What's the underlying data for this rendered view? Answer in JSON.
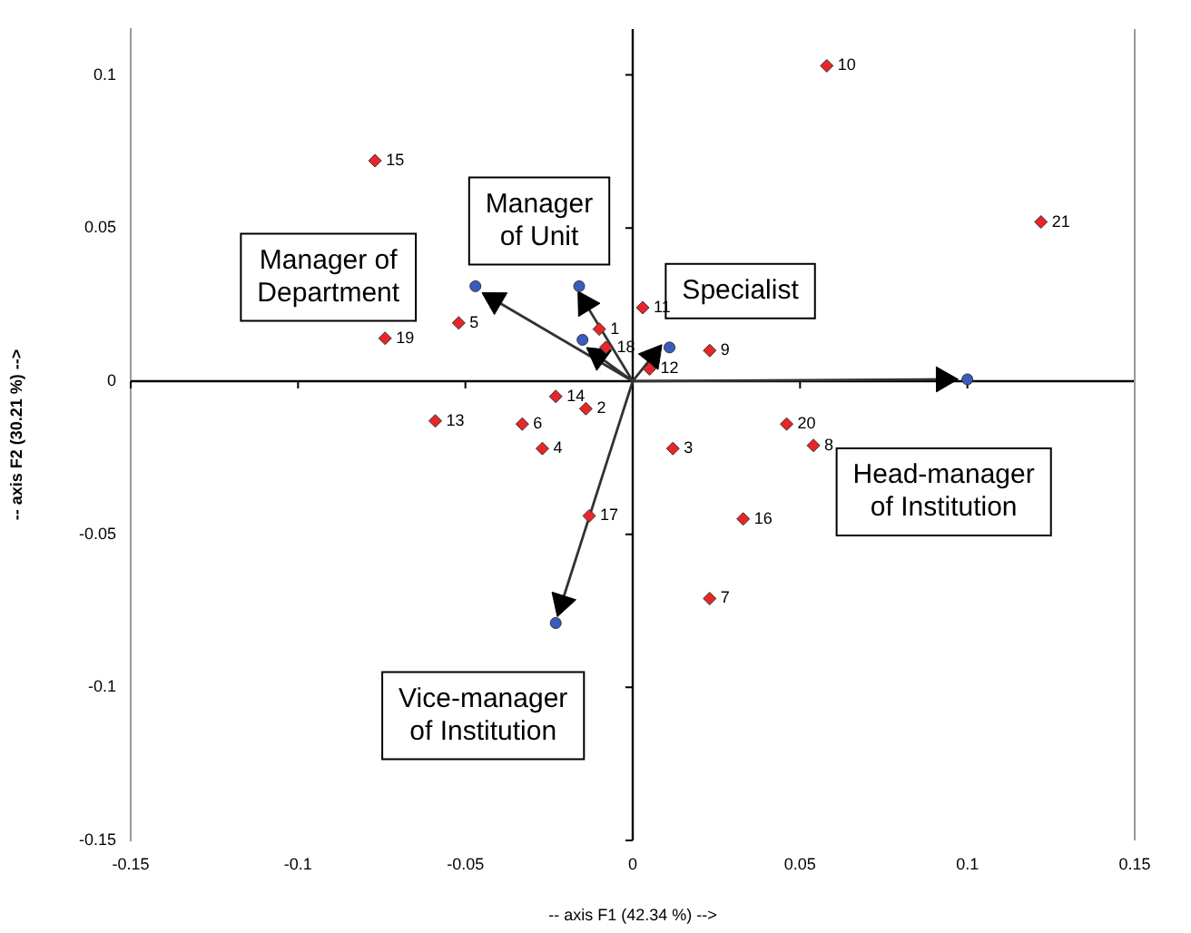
{
  "chart_data": {
    "type": "scatter",
    "xlabel": "-- axis F1 (42.34 %) -->",
    "ylabel": "-- axis F2 (30.21 %) -->",
    "xlim": [
      -0.15,
      0.15
    ],
    "xticks": [
      -0.15,
      -0.1,
      -0.05,
      0,
      0.05,
      0.1,
      0.15
    ],
    "ylim": [
      -0.15,
      0.115
    ],
    "yticks": [
      -0.15,
      -0.1,
      -0.05,
      0,
      0.05,
      0.1
    ],
    "legend": false,
    "series": [
      {
        "color": "#e8262a",
        "marker": "diamond",
        "x": [
          -0.01,
          -0.014,
          0.012,
          -0.027,
          -0.052,
          -0.033,
          0.023,
          0.054,
          0.023,
          0.058,
          0.003,
          0.005,
          -0.059,
          -0.023,
          -0.077,
          0.033,
          -0.013,
          -0.008,
          -0.074,
          0.046,
          0.122
        ],
        "values": [
          0.017,
          -0.009,
          -0.022,
          -0.022,
          0.019,
          -0.014,
          -0.071,
          -0.021,
          0.01,
          0.103,
          0.024,
          0.004,
          -0.013,
          -0.005,
          0.072,
          -0.045,
          -0.044,
          0.011,
          0.014,
          -0.014,
          0.052
        ]
      },
      {
        "color": "#3a5bbf",
        "marker": "circle",
        "x": [
          -0.047,
          -0.016,
          -0.015,
          0.011,
          0.1,
          -0.023
        ],
        "values": [
          0.031,
          0.031,
          0.0135,
          0.011,
          0.0006,
          -0.079
        ]
      },
      {
        "type": "line",
        "color": "#333333",
        "marker": "triangle",
        "x": [
          0,
          -0.0413,
          0,
          -0.0141,
          0,
          -0.0103,
          0,
          0.006,
          0,
          0.0929,
          0,
          -0.0212
        ],
        "values": [
          0,
          0.0265,
          0,
          0.0253,
          0,
          0.0082,
          0,
          0.0082,
          0,
          0.0006,
          0,
          -0.0724
        ]
      }
    ],
    "annotations": [
      {
        "text": "Manager of\nDepartment",
        "x": -0.047,
        "y": 0.031
      },
      {
        "text": "Manager\nof Unit",
        "x": -0.016,
        "y": 0.031
      },
      {
        "text": "Specialist",
        "x": 0.011,
        "y": 0.011
      },
      {
        "text": "Head-manager\nof Institution",
        "x": 0.1,
        "y": 0.0006
      },
      {
        "text": "Vice-manager\nof Institution",
        "x": -0.023,
        "y": -0.079
      },
      {
        "text": "1",
        "x": -0.01,
        "y": 0.017
      },
      {
        "text": "2",
        "x": -0.014,
        "y": -0.009
      },
      {
        "text": "3",
        "x": 0.012,
        "y": -0.022
      },
      {
        "text": "4",
        "x": -0.027,
        "y": -0.022
      },
      {
        "text": "5",
        "x": -0.052,
        "y": 0.019
      },
      {
        "text": "6",
        "x": -0.033,
        "y": -0.014
      },
      {
        "text": "7",
        "x": 0.023,
        "y": -0.071
      },
      {
        "text": "8",
        "x": 0.054,
        "y": -0.021
      },
      {
        "text": "9",
        "x": 0.023,
        "y": 0.01
      },
      {
        "text": "10",
        "x": 0.058,
        "y": 0.103
      },
      {
        "text": "11",
        "x": 0.003,
        "y": 0.024
      },
      {
        "text": "12",
        "x": 0.005,
        "y": 0.004
      },
      {
        "text": "13",
        "x": -0.059,
        "y": -0.013
      },
      {
        "text": "14",
        "x": -0.023,
        "y": -0.005
      },
      {
        "text": "15",
        "x": -0.077,
        "y": 0.072
      },
      {
        "text": "16",
        "x": 0.033,
        "y": -0.045
      },
      {
        "text": "17",
        "x": -0.013,
        "y": -0.044
      },
      {
        "text": "18",
        "x": -0.008,
        "y": 0.011
      },
      {
        "text": "19",
        "x": -0.074,
        "y": 0.014
      },
      {
        "text": "20",
        "x": 0.046,
        "y": -0.014
      },
      {
        "text": "21",
        "x": 0.122,
        "y": 0.052
      }
    ]
  }
}
